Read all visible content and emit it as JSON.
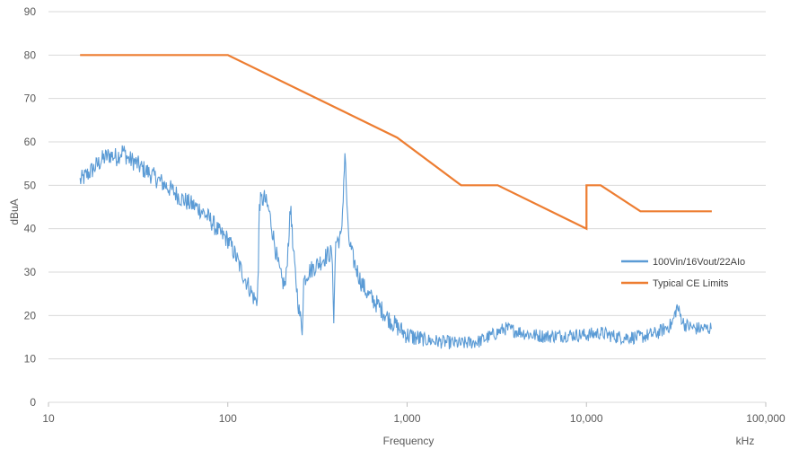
{
  "chart_data": {
    "type": "line",
    "xlabel": "Frequency",
    "xunit": "kHz",
    "ylabel": "dBuA",
    "x_scale": "log",
    "xlim": [
      10,
      100000
    ],
    "ylim": [
      0,
      90
    ],
    "grid": "horizontal",
    "legend_position": "right",
    "x_ticks": [
      10,
      100,
      1000,
      10000,
      100000
    ],
    "x_tick_labels": [
      "10",
      "100",
      "1,000",
      "10,000",
      "100,000"
    ],
    "y_ticks": [
      0,
      10,
      20,
      30,
      40,
      50,
      60,
      70,
      80,
      90
    ],
    "y_tick_labels": [
      "0",
      "10",
      "20",
      "30",
      "40",
      "50",
      "60",
      "70",
      "80",
      "90"
    ],
    "series": [
      {
        "name": "100Vin/16Vout/22AIo",
        "color": "#5B9BD5",
        "noise": true,
        "points": [
          [
            15,
            51
          ],
          [
            16,
            52
          ],
          [
            18,
            54
          ],
          [
            20,
            56
          ],
          [
            22,
            57
          ],
          [
            24,
            56.5
          ],
          [
            26,
            58
          ],
          [
            28,
            56
          ],
          [
            30,
            55.5
          ],
          [
            33,
            54
          ],
          [
            36,
            53
          ],
          [
            40,
            51.5
          ],
          [
            45,
            50
          ],
          [
            50,
            48.5
          ],
          [
            55,
            47
          ],
          [
            60,
            46
          ],
          [
            70,
            44.5
          ],
          [
            80,
            42
          ],
          [
            90,
            39
          ],
          [
            100,
            37.5
          ],
          [
            110,
            34
          ],
          [
            120,
            30
          ],
          [
            130,
            27
          ],
          [
            140,
            24
          ],
          [
            145,
            23
          ],
          [
            148,
            30
          ],
          [
            150,
            46
          ],
          [
            160,
            47
          ],
          [
            170,
            44
          ],
          [
            180,
            38
          ],
          [
            190,
            32
          ],
          [
            200,
            28
          ],
          [
            210,
            27
          ],
          [
            220,
            40
          ],
          [
            225,
            45.5
          ],
          [
            230,
            36
          ],
          [
            240,
            28
          ],
          [
            250,
            21
          ],
          [
            260,
            17
          ],
          [
            265,
            28
          ],
          [
            280,
            30
          ],
          [
            300,
            31
          ],
          [
            330,
            32.5
          ],
          [
            360,
            34
          ],
          [
            380,
            34.5
          ],
          [
            390,
            20
          ],
          [
            400,
            37
          ],
          [
            430,
            38
          ],
          [
            450,
            57.5
          ],
          [
            470,
            38
          ],
          [
            500,
            33
          ],
          [
            550,
            28
          ],
          [
            600,
            25
          ],
          [
            700,
            22
          ],
          [
            800,
            19
          ],
          [
            900,
            17
          ],
          [
            1000,
            15.5
          ],
          [
            1200,
            14.5
          ],
          [
            1500,
            14
          ],
          [
            2000,
            13.5
          ],
          [
            2500,
            14
          ],
          [
            3000,
            15.5
          ],
          [
            3500,
            17
          ],
          [
            4000,
            16.5
          ],
          [
            5000,
            15.5
          ],
          [
            6000,
            15.2
          ],
          [
            8000,
            15.5
          ],
          [
            10000,
            15.5
          ],
          [
            12000,
            16
          ],
          [
            15000,
            15
          ],
          [
            20000,
            15
          ],
          [
            25000,
            16
          ],
          [
            30000,
            18
          ],
          [
            32000,
            22
          ],
          [
            35000,
            18
          ],
          [
            40000,
            17
          ],
          [
            50000,
            17
          ]
        ]
      },
      {
        "name": "Typical CE Limits",
        "color": "#ED7D31",
        "noise": false,
        "points": [
          [
            15,
            80
          ],
          [
            100,
            80
          ],
          [
            880,
            61
          ],
          [
            2000,
            50
          ],
          [
            3200,
            50
          ],
          [
            10000,
            40
          ],
          [
            10000,
            50
          ],
          [
            12000,
            50
          ],
          [
            20000,
            44
          ],
          [
            50000,
            44
          ]
        ]
      }
    ]
  }
}
